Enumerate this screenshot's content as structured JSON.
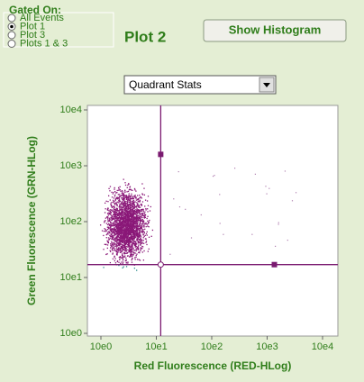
{
  "gate_panel": {
    "title": "Gated On:",
    "options": [
      "All Events",
      "Plot 1",
      "Plot 3",
      "Plots 1 & 3"
    ],
    "selected": 1
  },
  "plot_title": "Plot 2",
  "button": "Show Histogram",
  "dropdown": "Quadrant Stats",
  "plot": {
    "x_label": "Red Fluorescence (RED-HLog)",
    "y_label": "Green Fluorescence (GRN-HLog)",
    "log_scale": true,
    "xlim": [
      1,
      10000
    ],
    "ylim": [
      1,
      10000
    ],
    "xticks": [
      {
        "value": 1,
        "label": "10e0"
      },
      {
        "value": 10,
        "label": "10e1"
      },
      {
        "value": 100,
        "label": "10e2"
      },
      {
        "value": 1000,
        "label": "10e3"
      },
      {
        "value": 10000,
        "label": "10e4"
      }
    ],
    "yticks": [
      {
        "value": 1,
        "label": "10e0"
      },
      {
        "value": 10,
        "label": "10e1"
      },
      {
        "value": 100,
        "label": "10e2"
      },
      {
        "value": 1000,
        "label": "10e3"
      },
      {
        "value": 10000,
        "label": "10e4"
      }
    ],
    "quadrant": {
      "x": 12,
      "y": 17,
      "x_handle": 1350,
      "y_handle": 1600
    }
  }
}
